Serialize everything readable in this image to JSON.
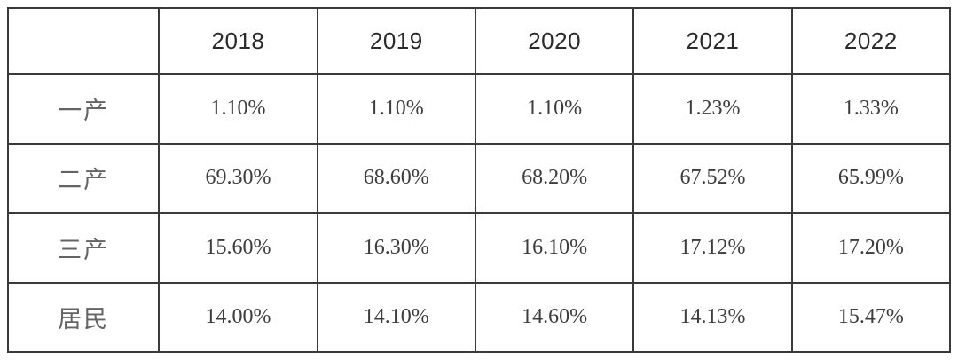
{
  "colors": {
    "background": "#ffffff",
    "border": "#3a3a3a",
    "header_text": "#2a2a2a",
    "value_text": "#3d3d3d",
    "label_text": "#646464"
  },
  "chart_data": {
    "type": "table",
    "title": "",
    "columns": [
      "",
      "2018",
      "2019",
      "2020",
      "2021",
      "2022"
    ],
    "rows": [
      {
        "label": "一产",
        "values": [
          "1.10%",
          "1.10%",
          "1.10%",
          "1.23%",
          "1.33%"
        ]
      },
      {
        "label": "二产",
        "values": [
          "69.30%",
          "68.60%",
          "68.20%",
          "67.52%",
          "65.99%"
        ]
      },
      {
        "label": "三产",
        "values": [
          "15.60%",
          "16.30%",
          "16.10%",
          "17.12%",
          "17.20%"
        ]
      },
      {
        "label": "居民",
        "values": [
          "14.00%",
          "14.10%",
          "14.60%",
          "14.13%",
          "15.47%"
        ]
      }
    ]
  }
}
